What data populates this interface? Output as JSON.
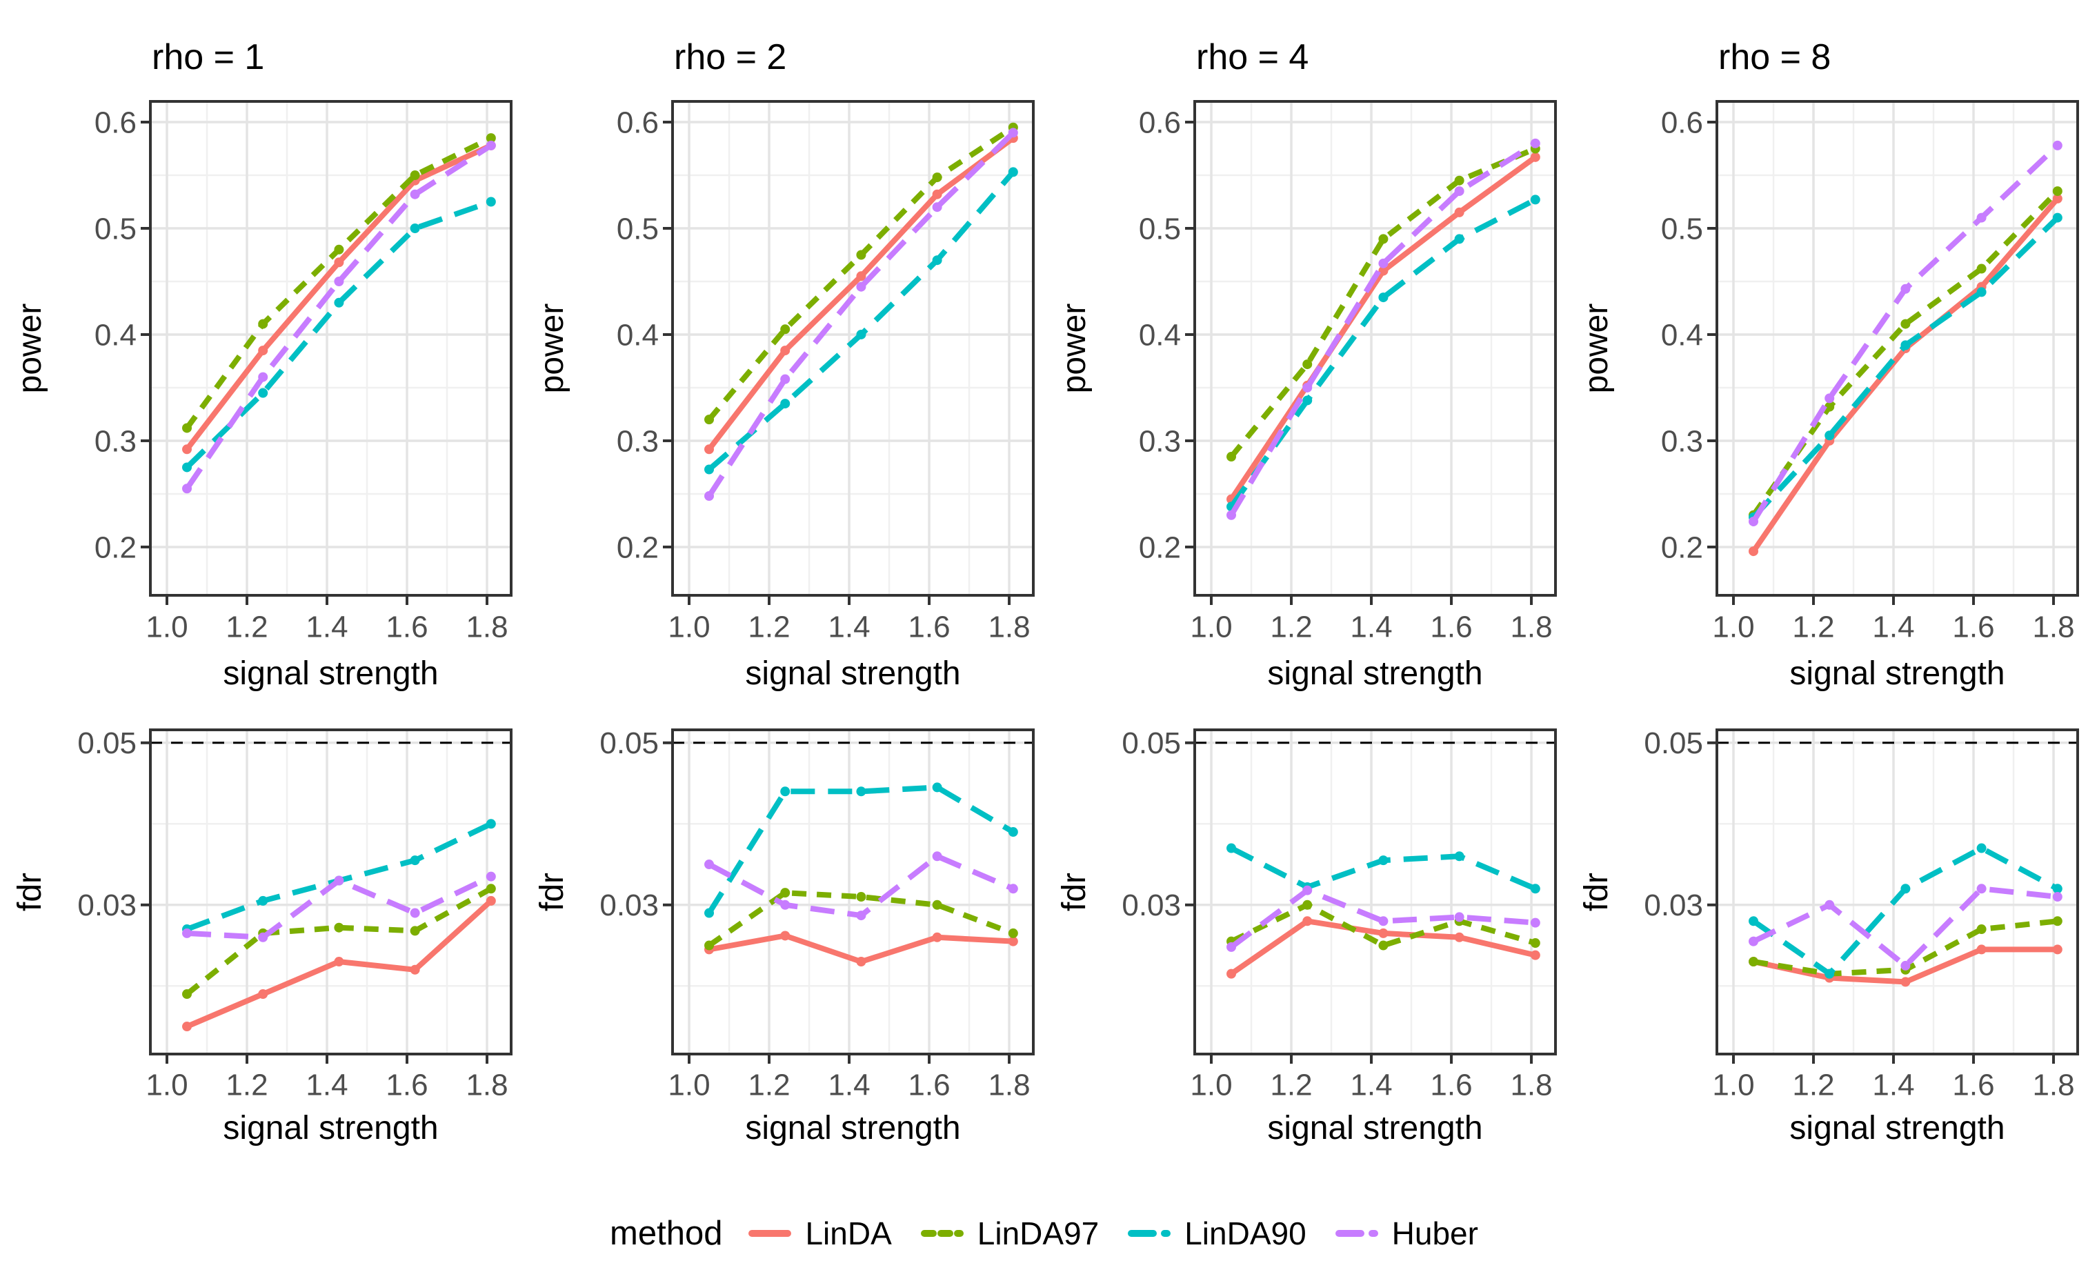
{
  "theme": {
    "background": "#FFFFFF",
    "panel_border": "#333333",
    "grid_major": "#E4E4E4",
    "grid_minor": "#F0F0F0",
    "tick_color": "#333333",
    "tick_label_color": "#4D4D4D",
    "text_color": "#000000",
    "ref_line_color": "#000000"
  },
  "chart_data": {
    "type": "line",
    "layout_hint": "facet grid: 4 columns (rho) x 2 rows (power, fdr); legend bottom center; grid on",
    "xlabel": "signal strength",
    "x": [
      1.05,
      1.24,
      1.43,
      1.62,
      1.81
    ],
    "x_ticks": [
      {
        "value": 1.0,
        "label": "1.0"
      },
      {
        "value": 1.2,
        "label": "1.2"
      },
      {
        "value": 1.4,
        "label": "1.4"
      },
      {
        "value": 1.6,
        "label": "1.6"
      },
      {
        "value": 1.8,
        "label": "1.8"
      }
    ],
    "x_minor": [
      1.1,
      1.3,
      1.5,
      1.7
    ],
    "xlim": [
      0.9586,
      1.8603
    ],
    "col_titles": [
      "rho = 1",
      "rho = 2",
      "rho = 4",
      "rho = 8"
    ],
    "legend": {
      "title": "method",
      "entries": [
        {
          "name": "LinDA",
          "color": "#F8766D",
          "linetype": "solid"
        },
        {
          "name": "LinDA97",
          "color": "#7CAE00",
          "linetype": "dotted"
        },
        {
          "name": "LinDA90",
          "color": "#00BFC4",
          "linetype": "dashed"
        },
        {
          "name": "Huber",
          "color": "#C77CFF",
          "linetype": "dashed"
        }
      ]
    },
    "rows": [
      {
        "ylabel": "power",
        "ylim": [
          0.1545,
          0.6195
        ],
        "y_ticks": [
          {
            "value": 0.6,
            "label": "0.6"
          },
          {
            "value": 0.5,
            "label": "0.5"
          },
          {
            "value": 0.4,
            "label": "0.4"
          },
          {
            "value": 0.3,
            "label": "0.3"
          },
          {
            "value": 0.2,
            "label": "0.2"
          }
        ],
        "y_major": [
          0.2,
          0.3,
          0.4,
          0.5,
          0.6
        ],
        "y_minor": [
          0.25,
          0.35,
          0.45,
          0.55
        ],
        "ref_line": null,
        "panels": [
          {
            "facet": "rho = 1",
            "series": {
              "LinDA": [
                0.292,
                0.385,
                0.468,
                0.545,
                0.578
              ],
              "LinDA97": [
                0.312,
                0.41,
                0.48,
                0.55,
                0.585
              ],
              "LinDA90": [
                0.275,
                0.345,
                0.43,
                0.5,
                0.525
              ],
              "Huber": [
                0.255,
                0.36,
                0.45,
                0.532,
                0.578
              ]
            }
          },
          {
            "facet": "rho = 2",
            "series": {
              "LinDA": [
                0.292,
                0.385,
                0.455,
                0.532,
                0.585
              ],
              "LinDA97": [
                0.32,
                0.405,
                0.475,
                0.548,
                0.595
              ],
              "LinDA90": [
                0.273,
                0.335,
                0.4,
                0.47,
                0.553
              ],
              "Huber": [
                0.248,
                0.358,
                0.445,
                0.52,
                0.59
              ]
            }
          },
          {
            "facet": "rho = 4",
            "series": {
              "LinDA": [
                0.245,
                0.352,
                0.46,
                0.515,
                0.567
              ],
              "LinDA97": [
                0.285,
                0.372,
                0.49,
                0.545,
                0.575
              ],
              "LinDA90": [
                0.238,
                0.338,
                0.435,
                0.49,
                0.527
              ],
              "Huber": [
                0.23,
                0.35,
                0.467,
                0.535,
                0.58
              ]
            }
          },
          {
            "facet": "rho = 8",
            "series": {
              "LinDA": [
                0.196,
                0.3,
                0.387,
                0.445,
                0.528
              ],
              "LinDA97": [
                0.23,
                0.332,
                0.41,
                0.462,
                0.535
              ],
              "LinDA90": [
                0.228,
                0.305,
                0.39,
                0.44,
                0.51
              ],
              "Huber": [
                0.224,
                0.34,
                0.443,
                0.51,
                0.578
              ]
            }
          }
        ]
      },
      {
        "ylabel": "fdr",
        "ylim": [
          0.0116,
          0.0516
        ],
        "y_ticks": [
          {
            "value": 0.05,
            "label": "0.05"
          },
          {
            "value": 0.03,
            "label": "0.03"
          }
        ],
        "y_major": [
          0.03,
          0.05
        ],
        "y_minor": [
          0.02,
          0.04
        ],
        "ref_line": 0.05,
        "panels": [
          {
            "facet": "rho = 1",
            "series": {
              "LinDA": [
                0.015,
                0.019,
                0.023,
                0.022,
                0.0305
              ],
              "LinDA97": [
                0.019,
                0.0265,
                0.0272,
                0.0268,
                0.032
              ],
              "LinDA90": [
                0.027,
                0.0305,
                0.033,
                0.0355,
                0.04
              ],
              "Huber": [
                0.0265,
                0.026,
                0.033,
                0.029,
                0.0335
              ]
            }
          },
          {
            "facet": "rho = 2",
            "series": {
              "LinDA": [
                0.0245,
                0.0262,
                0.023,
                0.026,
                0.0255
              ],
              "LinDA97": [
                0.025,
                0.0315,
                0.031,
                0.03,
                0.0265
              ],
              "LinDA90": [
                0.029,
                0.044,
                0.044,
                0.0445,
                0.039
              ],
              "Huber": [
                0.035,
                0.03,
                0.0287,
                0.036,
                0.032
              ]
            }
          },
          {
            "facet": "rho = 4",
            "series": {
              "LinDA": [
                0.0215,
                0.028,
                0.0265,
                0.026,
                0.0238
              ],
              "LinDA97": [
                0.0255,
                0.03,
                0.025,
                0.028,
                0.0253
              ],
              "LinDA90": [
                0.037,
                0.0322,
                0.0355,
                0.036,
                0.032
              ],
              "Huber": [
                0.0248,
                0.0318,
                0.028,
                0.0285,
                0.0278
              ]
            }
          },
          {
            "facet": "rho = 8",
            "series": {
              "LinDA": [
                0.023,
                0.021,
                0.0205,
                0.0245,
                0.0245
              ],
              "LinDA97": [
                0.023,
                0.0215,
                0.022,
                0.027,
                0.028
              ],
              "LinDA90": [
                0.028,
                0.0215,
                0.032,
                0.037,
                0.032
              ],
              "Huber": [
                0.0255,
                0.03,
                0.0225,
                0.032,
                0.031
              ]
            }
          }
        ]
      }
    ]
  }
}
